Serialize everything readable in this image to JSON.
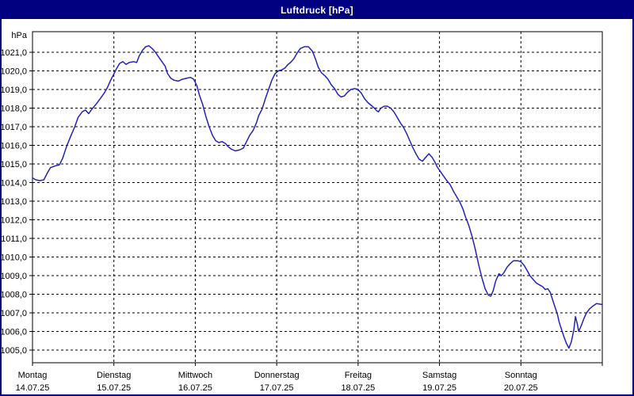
{
  "window": {
    "title": "Luftdruck [hPa]"
  },
  "colors": {
    "title_bar": "#000080",
    "title_text": "#ffffff",
    "window_border": "#000080",
    "plot_border": "#000000",
    "grid": "#000000",
    "text": "#000000",
    "line": "#2121c0",
    "background": "#ffffff"
  },
  "chart_data": {
    "type": "line",
    "title": "Luftdruck [hPa]",
    "ylabel": "hPa",
    "xlabel": "",
    "legend": "none",
    "grid": "dashed horizontal line per 1.0 hPa and dashed vertical line per day boundary",
    "ylim": [
      1004.3,
      1022.1
    ],
    "x_range_days": [
      0,
      7
    ],
    "y_ticks": [
      {
        "v": 1021,
        "label": "1021,0"
      },
      {
        "v": 1020,
        "label": "1020,0"
      },
      {
        "v": 1019,
        "label": "1019,0"
      },
      {
        "v": 1018,
        "label": "1018,0"
      },
      {
        "v": 1017,
        "label": "1017,0"
      },
      {
        "v": 1016,
        "label": "1016,0"
      },
      {
        "v": 1015,
        "label": "1015,0"
      },
      {
        "v": 1014,
        "label": "1014,0"
      },
      {
        "v": 1013,
        "label": "1013,0"
      },
      {
        "v": 1012,
        "label": "1012,0"
      },
      {
        "v": 1011,
        "label": "1011,0"
      },
      {
        "v": 1010,
        "label": "1010,0"
      },
      {
        "v": 1009,
        "label": "1009,0"
      },
      {
        "v": 1008,
        "label": "1008,0"
      },
      {
        "v": 1007,
        "label": "1007,0"
      },
      {
        "v": 1006,
        "label": "1006,0"
      },
      {
        "v": 1005,
        "label": "1005,0"
      }
    ],
    "x_days": [
      {
        "day": "Montag",
        "date": "14.07.25",
        "t": 0
      },
      {
        "day": "Dienstag",
        "date": "15.07.25",
        "t": 1
      },
      {
        "day": "Mittwoch",
        "date": "16.07.25",
        "t": 2
      },
      {
        "day": "Donnerstag",
        "date": "17.07.25",
        "t": 3
      },
      {
        "day": "Freitag",
        "date": "18.07.25",
        "t": 4
      },
      {
        "day": "Samstag",
        "date": "19.07.25",
        "t": 5
      },
      {
        "day": "Sonntag",
        "date": "20.07.25",
        "t": 6
      }
    ],
    "series": [
      {
        "name": "Luftdruck",
        "points": [
          [
            0.0,
            1014.25
          ],
          [
            0.04,
            1014.15
          ],
          [
            0.09,
            1014.1
          ],
          [
            0.14,
            1014.15
          ],
          [
            0.18,
            1014.5
          ],
          [
            0.22,
            1014.8
          ],
          [
            0.28,
            1014.9
          ],
          [
            0.33,
            1014.95
          ],
          [
            0.37,
            1015.3
          ],
          [
            0.42,
            1015.95
          ],
          [
            0.47,
            1016.5
          ],
          [
            0.52,
            1017.0
          ],
          [
            0.56,
            1017.5
          ],
          [
            0.61,
            1017.8
          ],
          [
            0.65,
            1017.9
          ],
          [
            0.69,
            1017.7
          ],
          [
            0.73,
            1017.95
          ],
          [
            0.78,
            1018.2
          ],
          [
            0.83,
            1018.5
          ],
          [
            0.88,
            1018.8
          ],
          [
            0.92,
            1019.1
          ],
          [
            0.96,
            1019.5
          ],
          [
            0.99,
            1019.75
          ],
          [
            1.03,
            1020.1
          ],
          [
            1.07,
            1020.4
          ],
          [
            1.11,
            1020.5
          ],
          [
            1.15,
            1020.35
          ],
          [
            1.19,
            1020.45
          ],
          [
            1.24,
            1020.5
          ],
          [
            1.28,
            1020.45
          ],
          [
            1.31,
            1020.8
          ],
          [
            1.35,
            1021.1
          ],
          [
            1.39,
            1021.3
          ],
          [
            1.43,
            1021.35
          ],
          [
            1.47,
            1021.2
          ],
          [
            1.51,
            1021.0
          ],
          [
            1.55,
            1020.75
          ],
          [
            1.59,
            1020.5
          ],
          [
            1.63,
            1020.25
          ],
          [
            1.66,
            1019.85
          ],
          [
            1.7,
            1019.6
          ],
          [
            1.74,
            1019.5
          ],
          [
            1.79,
            1019.45
          ],
          [
            1.84,
            1019.55
          ],
          [
            1.89,
            1019.6
          ],
          [
            1.94,
            1019.65
          ],
          [
            1.98,
            1019.55
          ],
          [
            2.02,
            1019.2
          ],
          [
            2.05,
            1018.7
          ],
          [
            2.09,
            1018.2
          ],
          [
            2.13,
            1017.55
          ],
          [
            2.17,
            1017.0
          ],
          [
            2.21,
            1016.55
          ],
          [
            2.25,
            1016.25
          ],
          [
            2.29,
            1016.15
          ],
          [
            2.33,
            1016.2
          ],
          [
            2.37,
            1016.1
          ],
          [
            2.4,
            1015.95
          ],
          [
            2.44,
            1015.8
          ],
          [
            2.49,
            1015.7
          ],
          [
            2.54,
            1015.75
          ],
          [
            2.59,
            1015.85
          ],
          [
            2.63,
            1016.2
          ],
          [
            2.67,
            1016.55
          ],
          [
            2.71,
            1016.8
          ],
          [
            2.75,
            1017.2
          ],
          [
            2.78,
            1017.6
          ],
          [
            2.82,
            1017.95
          ],
          [
            2.86,
            1018.5
          ],
          [
            2.9,
            1019.0
          ],
          [
            2.94,
            1019.5
          ],
          [
            2.98,
            1019.85
          ],
          [
            3.02,
            1020.0
          ],
          [
            3.06,
            1020.05
          ],
          [
            3.1,
            1020.15
          ],
          [
            3.14,
            1020.35
          ],
          [
            3.17,
            1020.45
          ],
          [
            3.21,
            1020.65
          ],
          [
            3.25,
            1020.95
          ],
          [
            3.29,
            1021.2
          ],
          [
            3.34,
            1021.3
          ],
          [
            3.39,
            1021.3
          ],
          [
            3.44,
            1021.05
          ],
          [
            3.48,
            1020.6
          ],
          [
            3.51,
            1020.2
          ],
          [
            3.55,
            1019.9
          ],
          [
            3.59,
            1019.75
          ],
          [
            3.63,
            1019.55
          ],
          [
            3.67,
            1019.25
          ],
          [
            3.71,
            1019.05
          ],
          [
            3.75,
            1018.75
          ],
          [
            3.79,
            1018.6
          ],
          [
            3.83,
            1018.65
          ],
          [
            3.87,
            1018.85
          ],
          [
            3.91,
            1019.0
          ],
          [
            3.96,
            1019.05
          ],
          [
            4.0,
            1019.0
          ],
          [
            4.04,
            1018.8
          ],
          [
            4.08,
            1018.5
          ],
          [
            4.12,
            1018.3
          ],
          [
            4.16,
            1018.15
          ],
          [
            4.2,
            1018.0
          ],
          [
            4.23,
            1017.85
          ],
          [
            4.25,
            1017.8
          ],
          [
            4.28,
            1018.0
          ],
          [
            4.32,
            1018.1
          ],
          [
            4.36,
            1018.1
          ],
          [
            4.4,
            1018.0
          ],
          [
            4.44,
            1017.8
          ],
          [
            4.48,
            1017.5
          ],
          [
            4.52,
            1017.2
          ],
          [
            4.56,
            1016.95
          ],
          [
            4.6,
            1016.6
          ],
          [
            4.63,
            1016.3
          ],
          [
            4.67,
            1015.9
          ],
          [
            4.71,
            1015.55
          ],
          [
            4.75,
            1015.25
          ],
          [
            4.79,
            1015.15
          ],
          [
            4.83,
            1015.35
          ],
          [
            4.87,
            1015.55
          ],
          [
            4.91,
            1015.35
          ],
          [
            4.95,
            1015.05
          ],
          [
            4.97,
            1014.85
          ],
          [
            5.01,
            1014.6
          ],
          [
            5.05,
            1014.35
          ],
          [
            5.09,
            1014.1
          ],
          [
            5.13,
            1013.9
          ],
          [
            5.17,
            1013.55
          ],
          [
            5.21,
            1013.25
          ],
          [
            5.25,
            1012.95
          ],
          [
            5.29,
            1012.55
          ],
          [
            5.32,
            1012.15
          ],
          [
            5.36,
            1011.7
          ],
          [
            5.4,
            1011.1
          ],
          [
            5.44,
            1010.4
          ],
          [
            5.48,
            1009.6
          ],
          [
            5.52,
            1008.9
          ],
          [
            5.56,
            1008.3
          ],
          [
            5.6,
            1007.95
          ],
          [
            5.63,
            1007.9
          ],
          [
            5.66,
            1008.2
          ],
          [
            5.69,
            1008.7
          ],
          [
            5.73,
            1009.1
          ],
          [
            5.76,
            1009.0
          ],
          [
            5.79,
            1009.15
          ],
          [
            5.83,
            1009.45
          ],
          [
            5.87,
            1009.65
          ],
          [
            5.91,
            1009.8
          ],
          [
            5.96,
            1009.8
          ],
          [
            6.0,
            1009.75
          ],
          [
            6.04,
            1009.55
          ],
          [
            6.08,
            1009.25
          ],
          [
            6.11,
            1009.0
          ],
          [
            6.15,
            1008.8
          ],
          [
            6.19,
            1008.6
          ],
          [
            6.23,
            1008.5
          ],
          [
            6.27,
            1008.4
          ],
          [
            6.3,
            1008.25
          ],
          [
            6.33,
            1008.3
          ],
          [
            6.36,
            1008.1
          ],
          [
            6.39,
            1007.7
          ],
          [
            6.42,
            1007.3
          ],
          [
            6.45,
            1006.9
          ],
          [
            6.47,
            1006.5
          ],
          [
            6.5,
            1006.1
          ],
          [
            6.53,
            1005.7
          ],
          [
            6.56,
            1005.35
          ],
          [
            6.59,
            1005.1
          ],
          [
            6.62,
            1005.45
          ],
          [
            6.65,
            1006.1
          ],
          [
            6.67,
            1006.8
          ],
          [
            6.69,
            1006.45
          ],
          [
            6.71,
            1006.0
          ],
          [
            6.74,
            1006.3
          ],
          [
            6.77,
            1006.65
          ],
          [
            6.8,
            1006.95
          ],
          [
            6.84,
            1007.2
          ],
          [
            6.88,
            1007.35
          ],
          [
            6.93,
            1007.5
          ],
          [
            6.99,
            1007.45
          ]
        ]
      }
    ]
  }
}
